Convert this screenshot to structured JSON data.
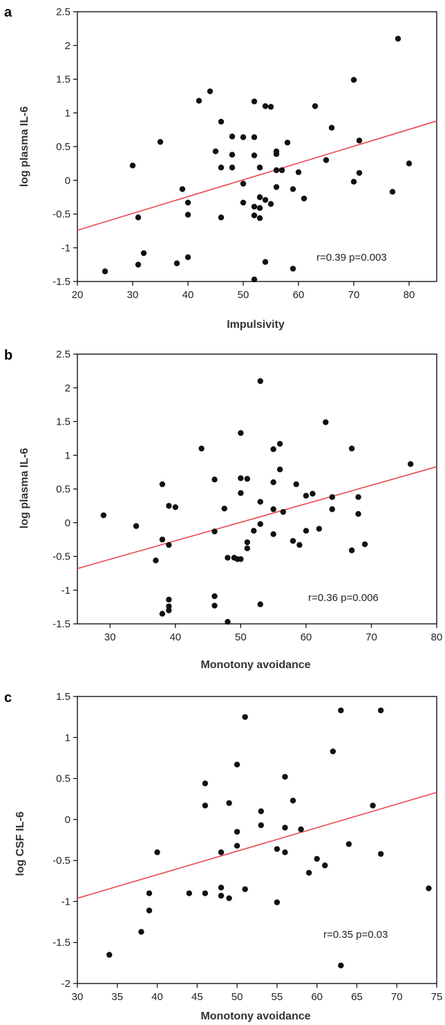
{
  "chart_data": [
    {
      "panel": "a",
      "type": "scatter",
      "xlabel": "Impulsivity",
      "ylabel": "log plasma IL-6",
      "xlim": [
        20,
        85
      ],
      "ylim": [
        -1.5,
        2.5
      ],
      "xticks": [
        20,
        30,
        40,
        50,
        60,
        70,
        80
      ],
      "yticks": [
        -1.5,
        -1,
        -0.5,
        0,
        0.5,
        1,
        1.5,
        2,
        2.5
      ],
      "annotation": "r=0.39 p=0.003",
      "fit_line": {
        "x": [
          20,
          85
        ],
        "y": [
          -0.74,
          0.88
        ],
        "color": "#e8474f"
      },
      "grid": false,
      "points": [
        [
          25,
          -1.35
        ],
        [
          30,
          0.22
        ],
        [
          31,
          -0.55
        ],
        [
          31,
          -1.25
        ],
        [
          32,
          -1.08
        ],
        [
          35,
          0.57
        ],
        [
          38,
          -1.23
        ],
        [
          39,
          -0.13
        ],
        [
          40,
          -0.33
        ],
        [
          40,
          -0.51
        ],
        [
          40,
          -1.14
        ],
        [
          42,
          1.18
        ],
        [
          44,
          1.32
        ],
        [
          45,
          0.43
        ],
        [
          46,
          0.87
        ],
        [
          46,
          0.19
        ],
        [
          46,
          -0.55
        ],
        [
          48,
          0.65
        ],
        [
          48,
          0.38
        ],
        [
          48,
          0.19
        ],
        [
          50,
          0.64
        ],
        [
          50,
          -0.05
        ],
        [
          50,
          -0.33
        ],
        [
          52,
          1.17
        ],
        [
          52,
          0.64
        ],
        [
          52,
          0.37
        ],
        [
          52,
          -0.39
        ],
        [
          52,
          -0.52
        ],
        [
          52,
          -1.47
        ],
        [
          53,
          0.19
        ],
        [
          53,
          -0.25
        ],
        [
          53,
          -0.41
        ],
        [
          53,
          -0.56
        ],
        [
          54,
          1.1
        ],
        [
          54,
          -0.29
        ],
        [
          54,
          -1.21
        ],
        [
          55,
          1.09
        ],
        [
          55,
          -0.35
        ],
        [
          56,
          0.43
        ],
        [
          56,
          0.39
        ],
        [
          56,
          0.15
        ],
        [
          56,
          -0.1
        ],
        [
          57,
          0.15
        ],
        [
          58,
          0.56
        ],
        [
          59,
          -0.13
        ],
        [
          59,
          -1.31
        ],
        [
          60,
          0.12
        ],
        [
          61,
          -0.27
        ],
        [
          63,
          1.1
        ],
        [
          65,
          0.3
        ],
        [
          66,
          0.78
        ],
        [
          70,
          1.49
        ],
        [
          70,
          -0.02
        ],
        [
          71,
          0.59
        ],
        [
          71,
          0.11
        ],
        [
          77,
          -0.17
        ],
        [
          78,
          2.1
        ],
        [
          80,
          0.25
        ]
      ]
    },
    {
      "panel": "b",
      "type": "scatter",
      "xlabel": "Monotony avoidance",
      "ylabel": "log plasma IL-6",
      "xlim": [
        25,
        80
      ],
      "ylim": [
        -1.5,
        2.5
      ],
      "xticks": [
        30,
        40,
        50,
        60,
        70,
        80
      ],
      "yticks": [
        -1.5,
        -1,
        -0.5,
        0,
        0.5,
        1,
        1.5,
        2,
        2.5
      ],
      "annotation": "r=0.36 p=0.006",
      "fit_line": {
        "x": [
          25,
          80
        ],
        "y": [
          -0.68,
          0.83
        ],
        "color": "#e8474f"
      },
      "grid": false,
      "points": [
        [
          29,
          0.11
        ],
        [
          34,
          -0.05
        ],
        [
          37,
          -0.56
        ],
        [
          38,
          0.57
        ],
        [
          38,
          -0.25
        ],
        [
          38,
          -1.35
        ],
        [
          39,
          0.25
        ],
        [
          39,
          -0.33
        ],
        [
          39,
          -1.14
        ],
        [
          39,
          -1.24
        ],
        [
          39,
          -1.3
        ],
        [
          40,
          0.23
        ],
        [
          44,
          1.1
        ],
        [
          46,
          0.64
        ],
        [
          46,
          -0.13
        ],
        [
          46,
          -1.09
        ],
        [
          46,
          -1.23
        ],
        [
          47.5,
          0.21
        ],
        [
          48,
          -0.52
        ],
        [
          48,
          -1.47
        ],
        [
          49,
          -0.52
        ],
        [
          49.5,
          -0.54
        ],
        [
          50,
          1.33
        ],
        [
          50,
          0.66
        ],
        [
          50,
          0.44
        ],
        [
          50,
          -0.54
        ],
        [
          51,
          0.65
        ],
        [
          51,
          -0.29
        ],
        [
          51,
          -0.38
        ],
        [
          52,
          -0.12
        ],
        [
          53,
          2.1
        ],
        [
          53,
          0.31
        ],
        [
          53,
          -0.02
        ],
        [
          53,
          -1.21
        ],
        [
          55,
          1.09
        ],
        [
          55,
          0.6
        ],
        [
          55,
          0.2
        ],
        [
          55,
          -0.17
        ],
        [
          56,
          1.17
        ],
        [
          56,
          0.79
        ],
        [
          56.5,
          0.16
        ],
        [
          58,
          -0.27
        ],
        [
          58.5,
          0.57
        ],
        [
          59,
          -0.33
        ],
        [
          60,
          0.4
        ],
        [
          60,
          -0.12
        ],
        [
          61,
          0.43
        ],
        [
          62,
          -0.09
        ],
        [
          63,
          1.49
        ],
        [
          64,
          0.38
        ],
        [
          64,
          0.2
        ],
        [
          67,
          1.1
        ],
        [
          67,
          -0.41
        ],
        [
          68,
          0.38
        ],
        [
          68,
          0.13
        ],
        [
          69,
          -0.32
        ],
        [
          76,
          0.87
        ]
      ]
    },
    {
      "panel": "c",
      "type": "scatter",
      "xlabel": "Monotony avoidance",
      "ylabel": "log CSF IL-6",
      "xlim": [
        30,
        75
      ],
      "ylim": [
        -2,
        1.5
      ],
      "xticks": [
        30,
        35,
        40,
        45,
        50,
        55,
        60,
        65,
        70,
        75
      ],
      "yticks": [
        -2,
        -1.5,
        -1,
        -0.5,
        0,
        0.5,
        1,
        1.5
      ],
      "annotation": "r=0.35 p=0.03",
      "fit_line": {
        "x": [
          30,
          75
        ],
        "y": [
          -0.96,
          0.33
        ],
        "color": "#e8474f"
      },
      "grid": false,
      "points": [
        [
          34,
          -1.65
        ],
        [
          38,
          -1.37
        ],
        [
          39,
          -0.9
        ],
        [
          39,
          -1.11
        ],
        [
          40,
          -0.4
        ],
        [
          44,
          -0.9
        ],
        [
          46,
          0.44
        ],
        [
          46,
          0.17
        ],
        [
          46,
          -0.9
        ],
        [
          48,
          -0.4
        ],
        [
          48,
          -0.83
        ],
        [
          48,
          -0.93
        ],
        [
          49,
          0.2
        ],
        [
          49,
          -0.96
        ],
        [
          50,
          0.67
        ],
        [
          50,
          -0.15
        ],
        [
          50,
          -0.32
        ],
        [
          51,
          1.25
        ],
        [
          51,
          -0.85
        ],
        [
          53,
          0.1
        ],
        [
          53,
          -0.07
        ],
        [
          55,
          -0.36
        ],
        [
          55,
          -1.01
        ],
        [
          56,
          0.52
        ],
        [
          56,
          -0.1
        ],
        [
          56,
          -0.4
        ],
        [
          57,
          0.23
        ],
        [
          58,
          -0.12
        ],
        [
          59,
          -0.65
        ],
        [
          60,
          -0.48
        ],
        [
          61,
          -0.56
        ],
        [
          62,
          0.83
        ],
        [
          63,
          1.33
        ],
        [
          63,
          -1.78
        ],
        [
          64,
          -0.3
        ],
        [
          67,
          0.17
        ],
        [
          68,
          1.33
        ],
        [
          68,
          -0.42
        ],
        [
          74,
          -0.84
        ]
      ]
    }
  ]
}
